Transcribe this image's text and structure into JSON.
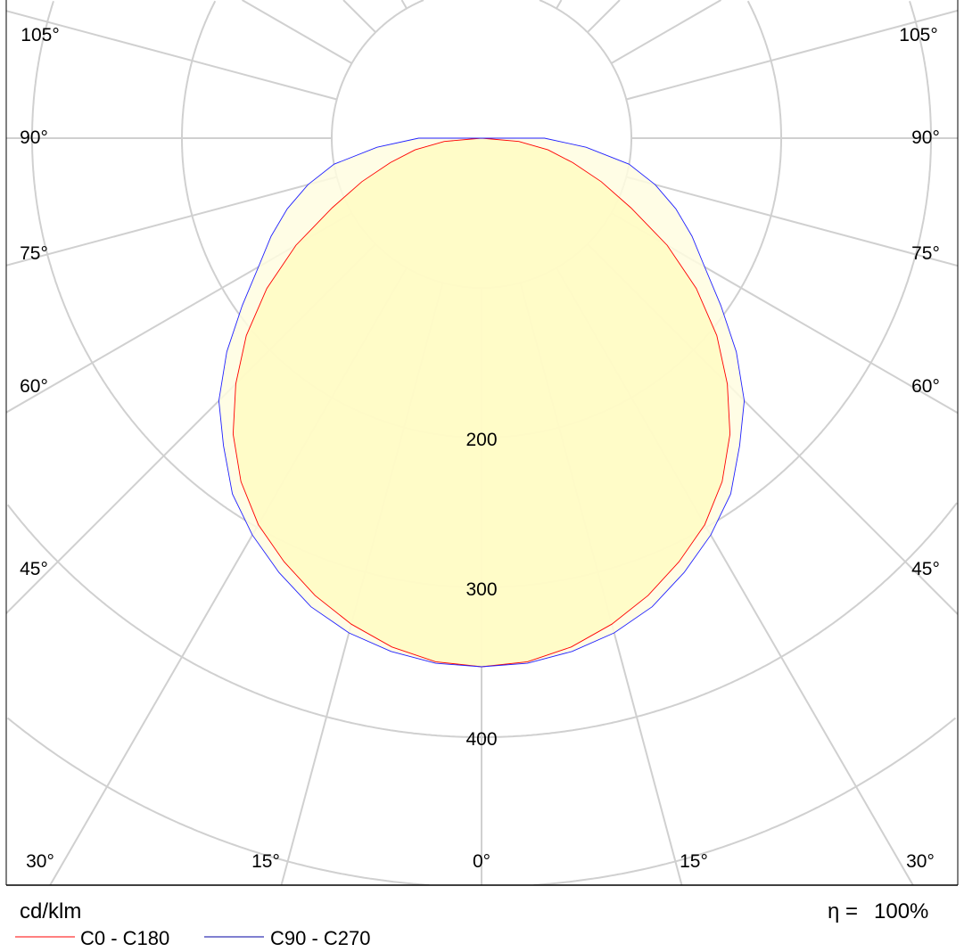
{
  "chart_data": {
    "type": "polar-line",
    "unit_label": "cd/klm",
    "efficiency_symbol": "η =",
    "efficiency_value": "100%",
    "radial_ticks": [
      100,
      200,
      300,
      400,
      500,
      600
    ],
    "radial_tick_labels": [
      "200",
      "300",
      "400"
    ],
    "angle_labels": [
      "0°",
      "15°",
      "30°",
      "45°",
      "60°",
      "75°",
      "90°",
      "105°"
    ],
    "angles_deg": [
      0,
      5,
      10,
      15,
      20,
      25,
      30,
      35,
      40,
      45,
      50,
      55,
      60,
      65,
      70,
      75,
      80,
      85,
      90
    ],
    "series": [
      {
        "name": "C0 - C180",
        "color": "#ff0000",
        "values": [
          353,
          351,
          345,
          336,
          325,
          312,
          298,
          280,
          258,
          232,
          205,
          175,
          143,
          110,
          85,
          63,
          45,
          25,
          0
        ]
      },
      {
        "name": "C90 - C270",
        "color": "#0000ff",
        "values": [
          353,
          352,
          348,
          342,
          333,
          320,
          306,
          290,
          268,
          248,
          222,
          195,
          172,
          155,
          138,
          120,
          100,
          70,
          42
        ]
      }
    ],
    "fill_color": "#fffbc0",
    "grid": true
  }
}
